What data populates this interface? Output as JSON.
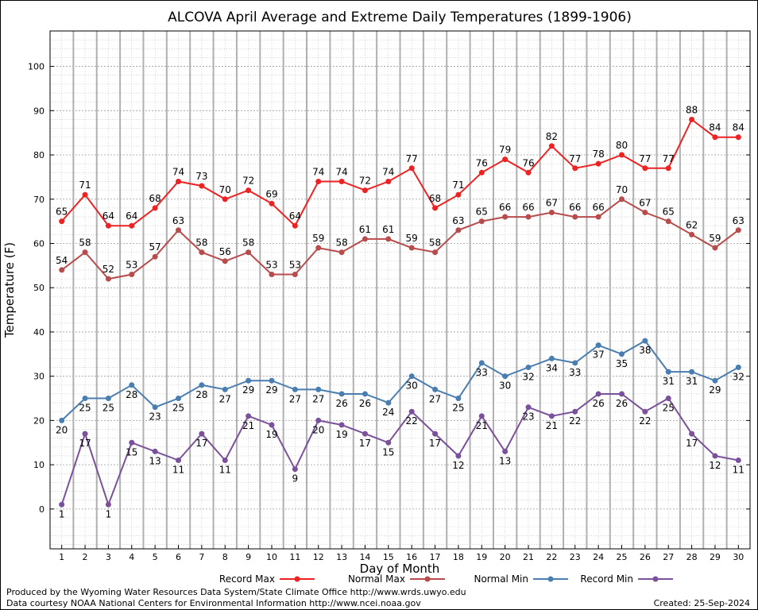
{
  "chart_data": {
    "type": "line",
    "title": "ALCOVA April Average and Extreme Daily Temperatures (1899-1906)",
    "xlabel": "Day of Month",
    "ylabel": "Temperature (F)",
    "x": [
      1,
      2,
      3,
      4,
      5,
      6,
      7,
      8,
      9,
      10,
      11,
      12,
      13,
      14,
      15,
      16,
      17,
      18,
      19,
      20,
      21,
      22,
      23,
      24,
      25,
      26,
      27,
      28,
      29,
      30
    ],
    "xlim": [
      0.5,
      30.5
    ],
    "ylim": [
      -9,
      108
    ],
    "y_ticks": [
      0,
      10,
      20,
      30,
      40,
      50,
      60,
      70,
      80,
      90,
      100
    ],
    "grid": true,
    "legend_position": "bottom",
    "series": [
      {
        "name": "Record Max",
        "color": "#ee2222",
        "label_position": "above",
        "values": [
          65,
          71,
          64,
          64,
          68,
          74,
          73,
          70,
          72,
          69,
          64,
          74,
          74,
          72,
          74,
          77,
          68,
          71,
          76,
          79,
          76,
          82,
          77,
          78,
          80,
          77,
          77,
          88,
          84,
          84
        ]
      },
      {
        "name": "Normal Max",
        "color": "#b84c4c",
        "label_position": "above",
        "values": [
          54,
          58,
          52,
          53,
          57,
          63,
          58,
          56,
          58,
          53,
          53,
          59,
          58,
          61,
          61,
          59,
          58,
          63,
          65,
          66,
          66,
          67,
          66,
          66,
          70,
          67,
          65,
          62,
          59,
          63
        ]
      },
      {
        "name": "Normal Min",
        "color": "#4a7eb0",
        "label_position": "below",
        "values": [
          20,
          25,
          25,
          28,
          23,
          25,
          28,
          27,
          29,
          29,
          27,
          27,
          26,
          26,
          24,
          30,
          27,
          25,
          33,
          30,
          32,
          34,
          33,
          37,
          35,
          38,
          31,
          31,
          29,
          32
        ]
      },
      {
        "name": "Record Min",
        "color": "#7a519a",
        "label_position": "below",
        "values": [
          1,
          17,
          1,
          15,
          13,
          11,
          17,
          11,
          21,
          19,
          9,
          20,
          19,
          17,
          15,
          22,
          17,
          12,
          21,
          13,
          23,
          21,
          22,
          26,
          26,
          22,
          25,
          17,
          12,
          11
        ]
      }
    ]
  },
  "footer": {
    "line1": "Produced by the Wyoming Water Resources Data System/State Climate Office http://www.wrds.uwyo.edu",
    "line2": "Data courtesy NOAA National Centers for Environmental Information http://www.ncei.noaa.gov",
    "created": "Created:  25-Sep-2024"
  }
}
